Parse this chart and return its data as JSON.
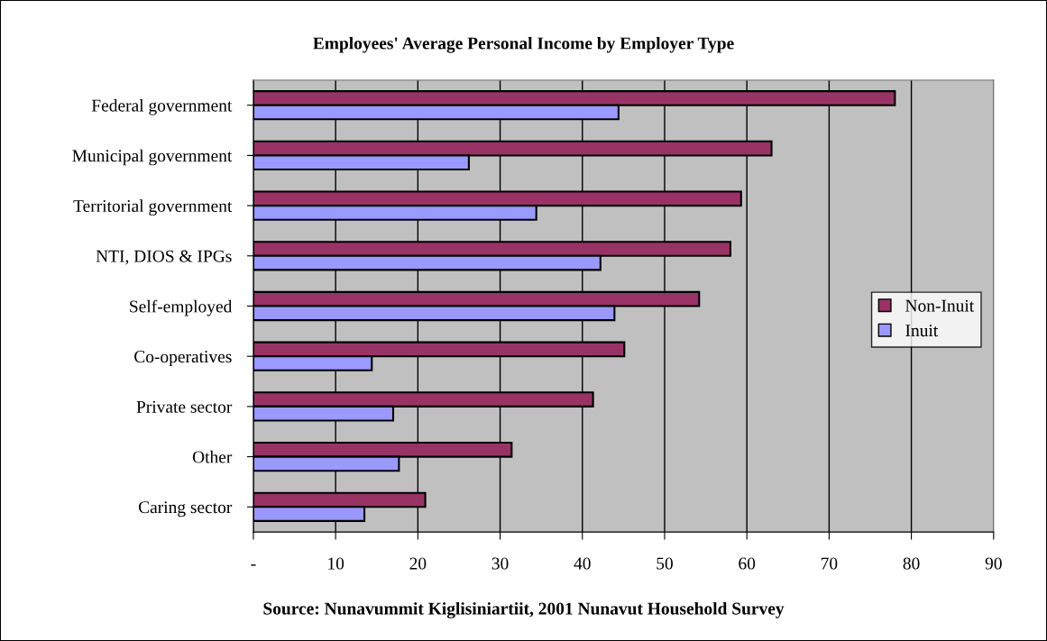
{
  "chart_data": {
    "type": "bar",
    "orientation": "horizontal",
    "title": "Employees' Average Personal Income by Employer Type",
    "categories": [
      "Federal government",
      "Municipal government",
      "Territorial government",
      "NTI, DIOS & IPGs",
      "Self-employed",
      "Co-operatives",
      "Private sector",
      "Other",
      "Caring sector"
    ],
    "series": [
      {
        "name": "Non-Inuit",
        "color": "#993366",
        "values": [
          78,
          63,
          59.3,
          58,
          54.2,
          45.1,
          41.3,
          31.4,
          20.9
        ]
      },
      {
        "name": "Inuit",
        "color": "#9999ff",
        "values": [
          44.4,
          26.2,
          34.4,
          42.2,
          43.9,
          14.4,
          17.0,
          17.7,
          13.5
        ]
      }
    ],
    "xlim": [
      0,
      90
    ],
    "xticks": [
      {
        "value": 0,
        "label": "-"
      },
      10,
      20,
      30,
      40,
      50,
      60,
      70,
      80,
      90
    ],
    "grid": "x",
    "legend": "right",
    "annotations": [
      "Source: Nunavummit Kiglisiniartiit, 2001 Nunavut Household Survey"
    ]
  }
}
